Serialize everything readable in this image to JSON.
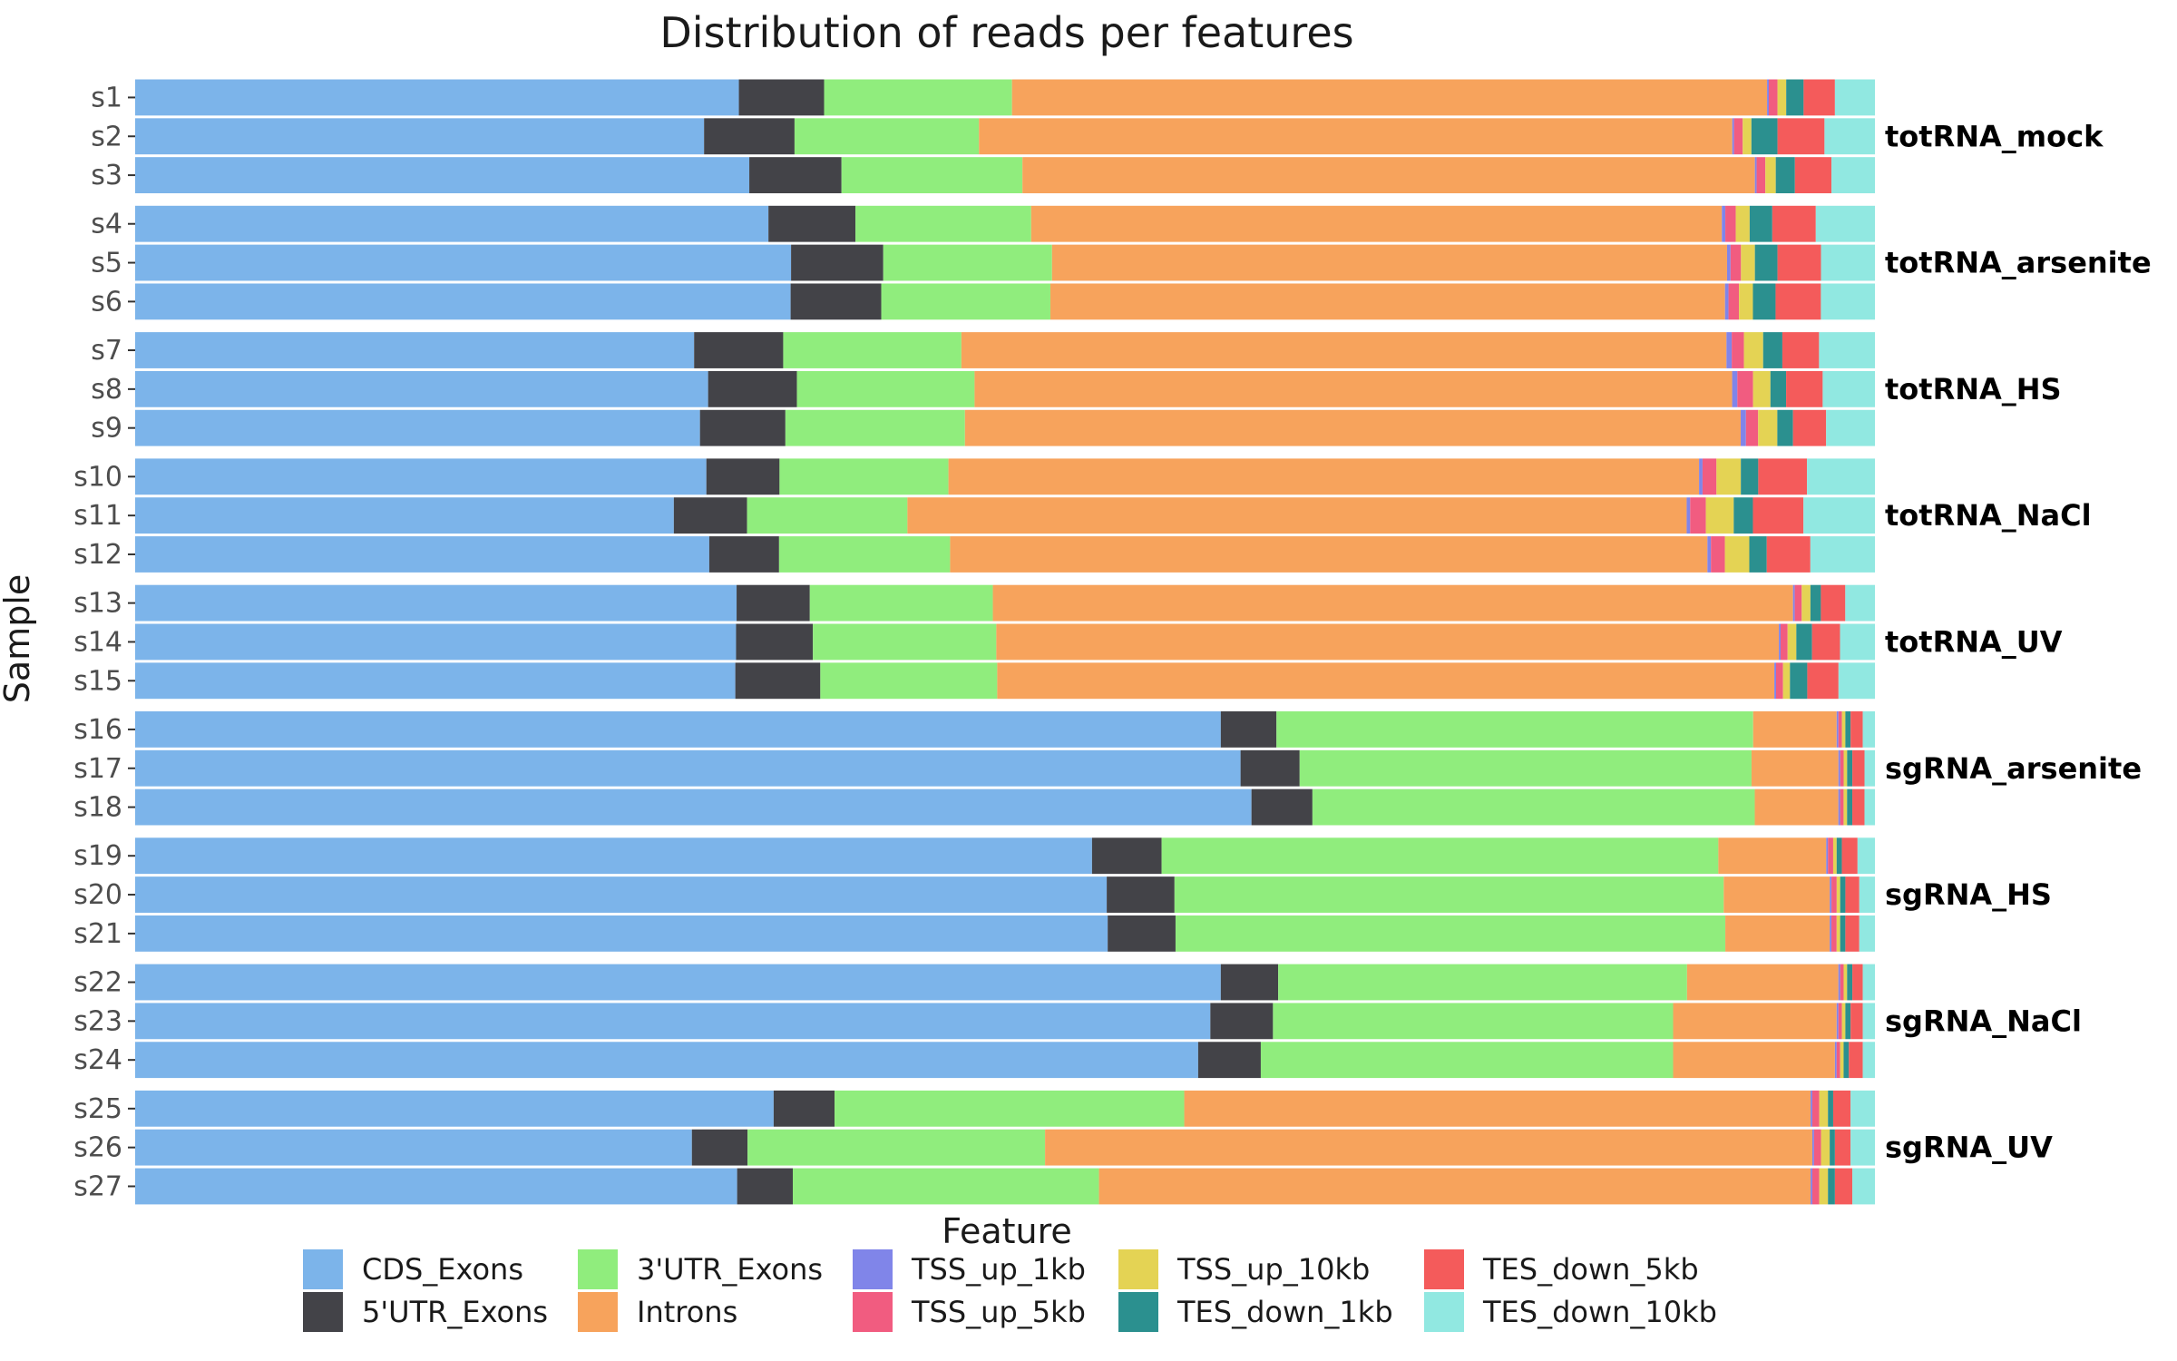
{
  "chart_data": {
    "type": "bar",
    "orientation": "horizontal",
    "stacked": "percent",
    "title": "Distribution of reads per features",
    "xlabel": "",
    "ylabel": "Sample",
    "xlim": [
      0,
      100
    ],
    "grid": false,
    "legend": {
      "title": "Feature",
      "position": "bottom"
    },
    "features": [
      "CDS_Exons",
      "5'UTR_Exons",
      "3'UTR_Exons",
      "Introns",
      "TSS_up_1kb",
      "TSS_up_5kb",
      "TSS_up_10kb",
      "TES_down_1kb",
      "TES_down_5kb",
      "TES_down_10kb"
    ],
    "colors": [
      "#7cb4ea",
      "#434348",
      "#90ed7d",
      "#f7a35c",
      "#8085e9",
      "#f15c80",
      "#e4d354",
      "#2b908f",
      "#f45b5b",
      "#91e8e1"
    ],
    "groups": [
      {
        "name": "totRNA_mock",
        "samples": [
          {
            "sample": "s1",
            "values": [
              34.7,
              4.9,
              10.8,
              43.4,
              0.1,
              0.5,
              0.5,
              1.0,
              1.8,
              2.3
            ]
          },
          {
            "sample": "s2",
            "values": [
              32.7,
              5.2,
              10.6,
              43.3,
              0.1,
              0.5,
              0.5,
              1.5,
              2.7,
              2.9
            ]
          },
          {
            "sample": "s3",
            "values": [
              35.3,
              5.3,
              10.4,
              42.1,
              0.1,
              0.5,
              0.6,
              1.1,
              2.1,
              2.5
            ]
          }
        ]
      },
      {
        "name": "totRNA_arsenite",
        "samples": [
          {
            "sample": "s4",
            "values": [
              36.4,
              5.0,
              10.1,
              39.7,
              0.2,
              0.6,
              0.8,
              1.3,
              2.5,
              3.4
            ]
          },
          {
            "sample": "s5",
            "values": [
              37.7,
              5.3,
              9.7,
              38.8,
              0.2,
              0.6,
              0.8,
              1.3,
              2.5,
              3.1
            ]
          },
          {
            "sample": "s6",
            "values": [
              37.6,
              5.2,
              9.7,
              38.7,
              0.2,
              0.6,
              0.8,
              1.3,
              2.6,
              3.1
            ]
          }
        ]
      },
      {
        "name": "totRNA_HS",
        "samples": [
          {
            "sample": "s7",
            "values": [
              32.0,
              5.1,
              10.2,
              43.8,
              0.3,
              0.7,
              1.1,
              1.1,
              2.1,
              3.2
            ]
          },
          {
            "sample": "s8",
            "values": [
              32.9,
              5.1,
              10.2,
              43.5,
              0.3,
              0.9,
              1.0,
              0.9,
              2.1,
              3.0
            ]
          },
          {
            "sample": "s9",
            "values": [
              32.4,
              4.9,
              10.3,
              44.5,
              0.3,
              0.7,
              1.1,
              0.9,
              1.9,
              2.8
            ]
          }
        ]
      },
      {
        "name": "totRNA_NaCl",
        "samples": [
          {
            "sample": "s10",
            "values": [
              32.8,
              4.2,
              9.7,
              43.1,
              0.2,
              0.8,
              1.4,
              1.0,
              2.8,
              3.9
            ]
          },
          {
            "sample": "s11",
            "values": [
              30.9,
              4.2,
              9.2,
              44.7,
              0.2,
              0.9,
              1.6,
              1.1,
              2.9,
              4.1
            ]
          },
          {
            "sample": "s12",
            "values": [
              32.9,
              4.0,
              9.8,
              43.4,
              0.2,
              0.8,
              1.4,
              1.0,
              2.5,
              3.7
            ]
          }
        ]
      },
      {
        "name": "totRNA_UV",
        "samples": [
          {
            "sample": "s13",
            "values": [
              34.5,
              4.2,
              10.5,
              45.9,
              0.1,
              0.4,
              0.5,
              0.6,
              1.4,
              1.7
            ]
          },
          {
            "sample": "s14",
            "values": [
              34.4,
              4.4,
              10.5,
              44.8,
              0.1,
              0.4,
              0.5,
              0.9,
              1.6,
              2.0
            ]
          },
          {
            "sample": "s15",
            "values": [
              34.6,
              4.9,
              10.2,
              44.8,
              0.1,
              0.4,
              0.4,
              1.0,
              1.8,
              2.1
            ]
          }
        ]
      },
      {
        "name": "sgRNA_arsenite",
        "samples": [
          {
            "sample": "s16",
            "values": [
              62.4,
              3.2,
              27.4,
              4.8,
              0.1,
              0.2,
              0.2,
              0.3,
              0.7,
              0.7
            ]
          },
          {
            "sample": "s17",
            "values": [
              63.6,
              3.4,
              26.0,
              5.0,
              0.1,
              0.2,
              0.2,
              0.3,
              0.7,
              0.6
            ]
          },
          {
            "sample": "s18",
            "values": [
              64.1,
              3.5,
              25.4,
              4.8,
              0.1,
              0.2,
              0.2,
              0.3,
              0.7,
              0.6
            ]
          }
        ]
      },
      {
        "name": "sgRNA_HS",
        "samples": [
          {
            "sample": "s19",
            "values": [
              55.0,
              4.0,
              32.0,
              6.2,
              0.1,
              0.3,
              0.2,
              0.3,
              0.9,
              1.0
            ]
          },
          {
            "sample": "s20",
            "values": [
              55.9,
              3.9,
              31.6,
              6.1,
              0.1,
              0.3,
              0.2,
              0.3,
              0.8,
              0.9
            ]
          },
          {
            "sample": "s21",
            "values": [
              55.9,
              3.9,
              31.6,
              6.0,
              0.1,
              0.3,
              0.2,
              0.3,
              0.8,
              0.9
            ]
          }
        ]
      },
      {
        "name": "sgRNA_NaCl",
        "samples": [
          {
            "sample": "s22",
            "values": [
              62.4,
              3.3,
              23.5,
              8.7,
              0.1,
              0.2,
              0.2,
              0.3,
              0.6,
              0.7
            ]
          },
          {
            "sample": "s23",
            "values": [
              61.8,
              3.6,
              23.0,
              9.4,
              0.1,
              0.2,
              0.2,
              0.3,
              0.7,
              0.7
            ]
          },
          {
            "sample": "s24",
            "values": [
              61.1,
              3.6,
              23.7,
              9.3,
              0.1,
              0.2,
              0.2,
              0.3,
              0.8,
              0.7
            ]
          }
        ]
      },
      {
        "name": "sgRNA_UV",
        "samples": [
          {
            "sample": "s25",
            "values": [
              36.7,
              3.5,
              20.1,
              36.0,
              0.1,
              0.4,
              0.5,
              0.3,
              1.0,
              1.4
            ]
          },
          {
            "sample": "s26",
            "values": [
              32.0,
              3.2,
              17.1,
              44.1,
              0.1,
              0.4,
              0.5,
              0.3,
              0.9,
              1.4
            ]
          },
          {
            "sample": "s27",
            "values": [
              34.6,
              3.2,
              17.6,
              40.9,
              0.1,
              0.4,
              0.5,
              0.4,
              1.0,
              1.3
            ]
          }
        ]
      }
    ]
  }
}
